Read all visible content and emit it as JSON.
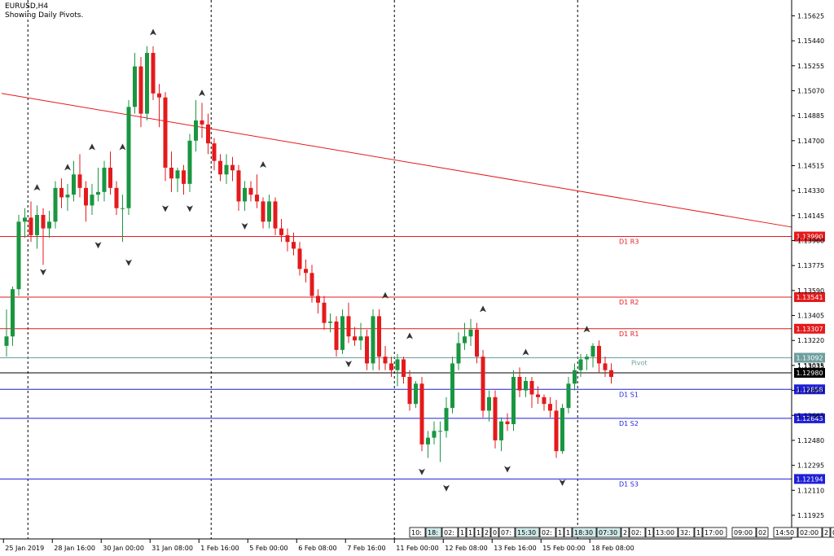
{
  "header": {
    "symbol": "EURUSD,H4",
    "indicator_note": "Showing Daily Pivots."
  },
  "colors": {
    "bull": "#1a9641",
    "bear": "#e41a1c",
    "resistance": "#e41a1c",
    "support": "#1f1fd6",
    "pivot": "#6e9e9e",
    "trendline": "#e41a1c",
    "current_price": "#000000"
  },
  "chart_data": {
    "type": "candlestick",
    "title": "",
    "xlabel": "",
    "ylabel": "",
    "ylim": [
      1.1175,
      1.1573
    ],
    "grid": false,
    "y_ticks": [
      "1.15625",
      "1.15440",
      "1.15255",
      "1.15070",
      "1.14885",
      "1.14700",
      "1.14515",
      "1.14330",
      "1.14145",
      "1.13960",
      "1.13775",
      "1.13590",
      "1.13405",
      "1.13220",
      "1.13035",
      "1.12850",
      "1.12665",
      "1.12480",
      "1.12295",
      "1.12110",
      "1.11925"
    ],
    "x_ticks": [
      "25 Jan 2019",
      "28 Jan 16:00",
      "30 Jan 00:00",
      "31 Jan 08:00",
      "1 Feb 16:00",
      "5 Feb 00:00",
      "6 Feb 08:00",
      "7 Feb 16:00",
      "11 Feb 00:00",
      "12 Feb 08:00",
      "13 Feb 16:00",
      "15 Feb 00:00",
      "18 Feb 08:00"
    ],
    "x_tick_index": [
      0,
      8,
      16,
      24,
      32,
      40,
      48,
      56,
      64,
      72,
      80,
      88,
      96
    ],
    "day_separators_index": [
      4,
      34,
      64,
      94
    ],
    "ohlc": [
      [
        1.1318,
        1.1345,
        1.131,
        1.1325
      ],
      [
        1.1325,
        1.1362,
        1.1318,
        1.136
      ],
      [
        1.136,
        1.1415,
        1.1355,
        1.141
      ],
      [
        1.141,
        1.142,
        1.1398,
        1.1413
      ],
      [
        1.1413,
        1.1425,
        1.1395,
        1.14
      ],
      [
        1.14,
        1.1422,
        1.139,
        1.1415
      ],
      [
        1.1415,
        1.142,
        1.1378,
        1.1405
      ],
      [
        1.1405,
        1.1418,
        1.1398,
        1.141
      ],
      [
        1.141,
        1.144,
        1.1405,
        1.1435
      ],
      [
        1.1435,
        1.1442,
        1.142,
        1.1428
      ],
      [
        1.1428,
        1.1438,
        1.1418,
        1.143
      ],
      [
        1.143,
        1.1455,
        1.1425,
        1.1445
      ],
      [
        1.1445,
        1.146,
        1.1428,
        1.1435
      ],
      [
        1.1435,
        1.144,
        1.141,
        1.1422
      ],
      [
        1.1422,
        1.1438,
        1.1415,
        1.143
      ],
      [
        1.143,
        1.145,
        1.1425,
        1.1432
      ],
      [
        1.1432,
        1.1455,
        1.1425,
        1.145
      ],
      [
        1.145,
        1.1462,
        1.143,
        1.1435
      ],
      [
        1.1435,
        1.144,
        1.1415,
        1.142
      ],
      [
        1.142,
        1.143,
        1.1395,
        1.142
      ],
      [
        1.142,
        1.15,
        1.1415,
        1.1495
      ],
      [
        1.1495,
        1.1535,
        1.149,
        1.1525
      ],
      [
        1.1525,
        1.1532,
        1.148,
        1.149
      ],
      [
        1.149,
        1.154,
        1.1485,
        1.1535
      ],
      [
        1.1535,
        1.154,
        1.15,
        1.1505
      ],
      [
        1.1505,
        1.1512,
        1.148,
        1.1502
      ],
      [
        1.1502,
        1.1506,
        1.144,
        1.145
      ],
      [
        1.145,
        1.1462,
        1.1432,
        1.1442
      ],
      [
        1.1442,
        1.145,
        1.1432,
        1.1448
      ],
      [
        1.1448,
        1.1452,
        1.143,
        1.1438
      ],
      [
        1.1438,
        1.1475,
        1.1432,
        1.147
      ],
      [
        1.147,
        1.15,
        1.1462,
        1.1485
      ],
      [
        1.1485,
        1.1498,
        1.1472,
        1.1482
      ],
      [
        1.1482,
        1.149,
        1.146,
        1.1468
      ],
      [
        1.1468,
        1.1472,
        1.1448,
        1.1455
      ],
      [
        1.1455,
        1.146,
        1.144,
        1.1445
      ],
      [
        1.1445,
        1.146,
        1.1438,
        1.1452
      ],
      [
        1.1452,
        1.1458,
        1.144,
        1.1448
      ],
      [
        1.1448,
        1.1452,
        1.1418,
        1.1425
      ],
      [
        1.1425,
        1.144,
        1.1418,
        1.1435
      ],
      [
        1.1435,
        1.144,
        1.1425,
        1.143
      ],
      [
        1.143,
        1.1445,
        1.142,
        1.1425
      ],
      [
        1.1425,
        1.1428,
        1.1405,
        1.141
      ],
      [
        1.141,
        1.143,
        1.1405,
        1.1425
      ],
      [
        1.1425,
        1.1428,
        1.14,
        1.1405
      ],
      [
        1.1405,
        1.1412,
        1.1395,
        1.14
      ],
      [
        1.14,
        1.1405,
        1.1388,
        1.1395
      ],
      [
        1.1395,
        1.1402,
        1.1385,
        1.139
      ],
      [
        1.139,
        1.1395,
        1.137,
        1.1375
      ],
      [
        1.1375,
        1.1382,
        1.1365,
        1.1372
      ],
      [
        1.1372,
        1.1378,
        1.135,
        1.1355
      ],
      [
        1.1355,
        1.136,
        1.1342,
        1.135
      ],
      [
        1.135,
        1.1355,
        1.133,
        1.1335
      ],
      [
        1.1335,
        1.1342,
        1.1328,
        1.1336
      ],
      [
        1.1336,
        1.134,
        1.131,
        1.1315
      ],
      [
        1.1315,
        1.1345,
        1.1312,
        1.134
      ],
      [
        1.134,
        1.135,
        1.132,
        1.1325
      ],
      [
        1.1325,
        1.1332,
        1.1318,
        1.1322
      ],
      [
        1.1322,
        1.1335,
        1.1315,
        1.1325
      ],
      [
        1.1325,
        1.133,
        1.13,
        1.1305
      ],
      [
        1.1305,
        1.1345,
        1.13,
        1.134
      ],
      [
        1.134,
        1.1345,
        1.13,
        1.131
      ],
      [
        1.131,
        1.1318,
        1.13,
        1.1305
      ],
      [
        1.1305,
        1.131,
        1.1295,
        1.13
      ],
      [
        1.13,
        1.1312,
        1.1288,
        1.1308
      ],
      [
        1.1308,
        1.131,
        1.129,
        1.1295
      ],
      [
        1.1295,
        1.13,
        1.127,
        1.1275
      ],
      [
        1.1275,
        1.1292,
        1.1272,
        1.129
      ],
      [
        1.129,
        1.1295,
        1.124,
        1.1245
      ],
      [
        1.1245,
        1.1255,
        1.1235,
        1.125
      ],
      [
        1.125,
        1.1262,
        1.1245,
        1.1255
      ],
      [
        1.1255,
        1.1262,
        1.1232,
        1.1255
      ],
      [
        1.1255,
        1.128,
        1.125,
        1.1272
      ],
      [
        1.1272,
        1.131,
        1.1268,
        1.1305
      ],
      [
        1.1305,
        1.1328,
        1.13,
        1.132
      ],
      [
        1.132,
        1.1335,
        1.1315,
        1.1325
      ],
      [
        1.1325,
        1.1338,
        1.1318,
        1.133
      ],
      [
        1.133,
        1.1335,
        1.1305,
        1.131
      ],
      [
        1.131,
        1.1315,
        1.1265,
        1.127
      ],
      [
        1.127,
        1.1285,
        1.1262,
        1.128
      ],
      [
        1.128,
        1.1285,
        1.1242,
        1.1248
      ],
      [
        1.1248,
        1.1265,
        1.124,
        1.1262
      ],
      [
        1.1262,
        1.1268,
        1.1255,
        1.126
      ],
      [
        1.126,
        1.13,
        1.1255,
        1.1295
      ],
      [
        1.1295,
        1.1302,
        1.128,
        1.1285
      ],
      [
        1.1285,
        1.1295,
        1.128,
        1.1292
      ],
      [
        1.1292,
        1.1295,
        1.1272,
        1.1282
      ],
      [
        1.1282,
        1.1288,
        1.1275,
        1.128
      ],
      [
        1.128,
        1.1282,
        1.127,
        1.1275
      ],
      [
        1.1275,
        1.128,
        1.1265,
        1.127
      ],
      [
        1.127,
        1.1278,
        1.1235,
        1.124
      ],
      [
        1.124,
        1.1275,
        1.1238,
        1.1272
      ],
      [
        1.1272,
        1.1295,
        1.1268,
        1.129
      ],
      [
        1.129,
        1.1305,
        1.1285,
        1.13
      ],
      [
        1.13,
        1.1312,
        1.1295,
        1.1308
      ],
      [
        1.1308,
        1.1312,
        1.13,
        1.131
      ],
      [
        1.131,
        1.132,
        1.1302,
        1.1318
      ],
      [
        1.1318,
        1.1322,
        1.1298,
        1.1305
      ],
      [
        1.1305,
        1.131,
        1.1295,
        1.13
      ],
      [
        1.13,
        1.1305,
        1.129,
        1.1295
      ]
    ],
    "fractals_up": [
      [
        5,
        1.143
      ],
      [
        10,
        1.1445
      ],
      [
        14,
        1.146
      ],
      [
        19,
        1.146
      ],
      [
        24,
        1.1545
      ],
      [
        32,
        1.15
      ],
      [
        42,
        1.1447
      ],
      [
        62,
        1.135
      ],
      [
        66,
        1.132
      ],
      [
        78,
        1.134
      ],
      [
        85,
        1.1308
      ],
      [
        95,
        1.1325
      ]
    ],
    "fractals_down": [
      [
        6,
        1.1378
      ],
      [
        15,
        1.1398
      ],
      [
        20,
        1.1385
      ],
      [
        26,
        1.1425
      ],
      [
        30,
        1.1425
      ],
      [
        39,
        1.1412
      ],
      [
        56,
        1.131
      ],
      [
        68,
        1.123
      ],
      [
        72,
        1.1218
      ],
      [
        82,
        1.1232
      ],
      [
        91,
        1.1222
      ]
    ],
    "trendline": {
      "start_index": 0,
      "start_price": 1.1505,
      "end_index": 100,
      "end_price": 1.1406
    },
    "current_price": {
      "label": "1.12980",
      "value": 1.1298
    },
    "pivot_levels": [
      {
        "name": "D1 R3",
        "price_label": "1.13990",
        "value": 1.1399,
        "kind": "resistance"
      },
      {
        "name": "D1 R2",
        "price_label": "1.13541",
        "value": 1.13541,
        "kind": "resistance"
      },
      {
        "name": "D1 R1",
        "price_label": "1.13307",
        "value": 1.13307,
        "kind": "resistance"
      },
      {
        "name": "Pivot",
        "price_label": "1.13092",
        "value": 1.13092,
        "kind": "pivot"
      },
      {
        "name": "D1 S1",
        "price_label": "1.12858",
        "value": 1.12858,
        "kind": "support"
      },
      {
        "name": "D1 S2",
        "price_label": "1.12643",
        "value": 1.12643,
        "kind": "support"
      },
      {
        "name": "D1 S3",
        "price_label": "1.12194",
        "value": 1.12194,
        "kind": "support"
      }
    ],
    "partial_tick_label": "1.13035",
    "time_marker_labels": [
      "10:",
      "18:",
      "02:",
      "1",
      "1",
      "1",
      "2",
      "0",
      "07:",
      "15:30",
      "02:",
      "1",
      "1",
      "18:30",
      "07:30",
      "2",
      "02:",
      "1",
      "13:00",
      "32:",
      "1",
      "17:00",
      "09:00",
      "02",
      "14:50",
      "02:00",
      "2",
      "00:30"
    ]
  }
}
